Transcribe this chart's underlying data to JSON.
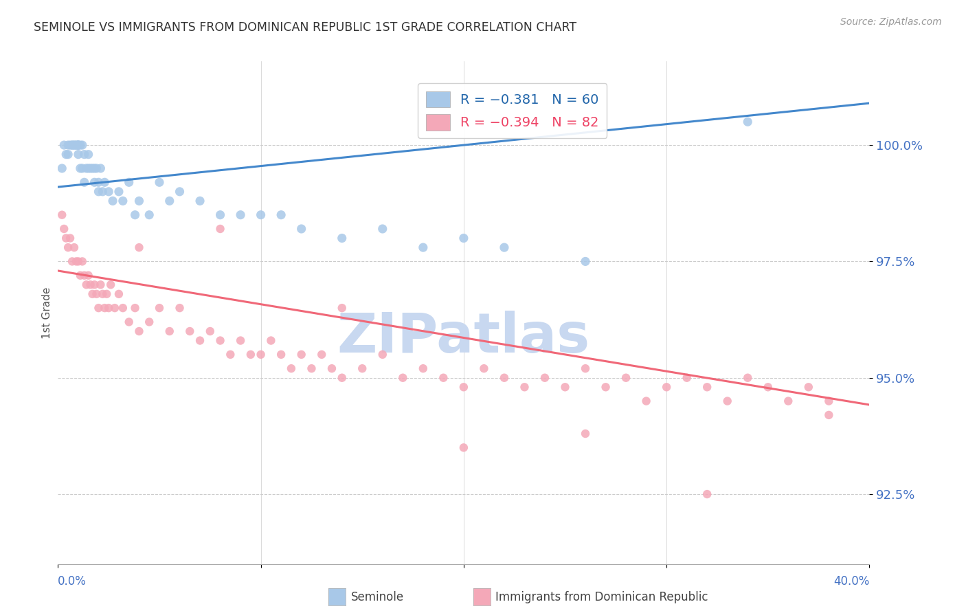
{
  "title": "SEMINOLE VS IMMIGRANTS FROM DOMINICAN REPUBLIC 1ST GRADE CORRELATION CHART",
  "source": "Source: ZipAtlas.com",
  "ylabel": "1st Grade",
  "y_ticks": [
    92.5,
    95.0,
    97.5,
    100.0
  ],
  "y_tick_labels": [
    "92.5%",
    "95.0%",
    "97.5%",
    "100.0%"
  ],
  "x_range": [
    0.0,
    40.0
  ],
  "y_range": [
    91.0,
    101.8
  ],
  "seminole_R": -0.381,
  "seminole_N": 60,
  "immigrants_R": -0.394,
  "immigrants_N": 82,
  "legend_label_blue": "Seminole",
  "legend_label_pink": "Immigrants from Dominican Republic",
  "blue_color": "#A8C8E8",
  "pink_color": "#F4A8B8",
  "blue_line_color": "#4488CC",
  "pink_line_color": "#F06878",
  "title_color": "#333333",
  "axis_label_color": "#4472C4",
  "watermark_color": "#C8D8F0",
  "seminole_x": [
    0.2,
    0.3,
    0.4,
    0.5,
    0.5,
    0.6,
    0.7,
    0.7,
    0.8,
    0.8,
    0.9,
    0.9,
    1.0,
    1.0,
    1.0,
    1.0,
    1.0,
    1.1,
    1.1,
    1.2,
    1.2,
    1.3,
    1.3,
    1.4,
    1.5,
    1.5,
    1.6,
    1.7,
    1.8,
    1.8,
    1.9,
    2.0,
    2.0,
    2.1,
    2.2,
    2.3,
    2.5,
    2.7,
    3.0,
    3.2,
    3.5,
    3.8,
    4.0,
    4.5,
    5.0,
    5.5,
    6.0,
    7.0,
    8.0,
    9.0,
    10.0,
    11.0,
    12.0,
    14.0,
    16.0,
    18.0,
    20.0,
    22.0,
    26.0,
    34.0
  ],
  "seminole_y": [
    99.5,
    100.0,
    99.8,
    100.0,
    99.8,
    100.0,
    100.0,
    100.0,
    100.0,
    100.0,
    100.0,
    100.0,
    100.0,
    100.0,
    100.0,
    100.0,
    99.8,
    100.0,
    99.5,
    100.0,
    99.5,
    99.8,
    99.2,
    99.5,
    99.5,
    99.8,
    99.5,
    99.5,
    99.5,
    99.2,
    99.5,
    99.2,
    99.0,
    99.5,
    99.0,
    99.2,
    99.0,
    98.8,
    99.0,
    98.8,
    99.2,
    98.5,
    98.8,
    98.5,
    99.2,
    98.8,
    99.0,
    98.8,
    98.5,
    98.5,
    98.5,
    98.5,
    98.2,
    98.0,
    98.2,
    97.8,
    98.0,
    97.8,
    97.5,
    100.5
  ],
  "immigrants_x": [
    0.2,
    0.3,
    0.4,
    0.5,
    0.6,
    0.7,
    0.8,
    0.9,
    1.0,
    1.1,
    1.2,
    1.3,
    1.4,
    1.5,
    1.6,
    1.7,
    1.8,
    1.9,
    2.0,
    2.1,
    2.2,
    2.3,
    2.4,
    2.5,
    2.6,
    2.8,
    3.0,
    3.2,
    3.5,
    3.8,
    4.0,
    4.5,
    5.0,
    5.5,
    6.0,
    6.5,
    7.0,
    7.5,
    8.0,
    8.5,
    9.0,
    9.5,
    10.0,
    10.5,
    11.0,
    11.5,
    12.0,
    12.5,
    13.0,
    13.5,
    14.0,
    15.0,
    16.0,
    17.0,
    18.0,
    19.0,
    20.0,
    21.0,
    22.0,
    23.0,
    24.0,
    25.0,
    26.0,
    27.0,
    28.0,
    29.0,
    30.0,
    31.0,
    32.0,
    33.0,
    34.0,
    35.0,
    36.0,
    37.0,
    38.0,
    4.0,
    8.0,
    14.0,
    20.0,
    26.0,
    32.0,
    38.0
  ],
  "immigrants_y": [
    98.5,
    98.2,
    98.0,
    97.8,
    98.0,
    97.5,
    97.8,
    97.5,
    97.5,
    97.2,
    97.5,
    97.2,
    97.0,
    97.2,
    97.0,
    96.8,
    97.0,
    96.8,
    96.5,
    97.0,
    96.8,
    96.5,
    96.8,
    96.5,
    97.0,
    96.5,
    96.8,
    96.5,
    96.2,
    96.5,
    96.0,
    96.2,
    96.5,
    96.0,
    96.5,
    96.0,
    95.8,
    96.0,
    95.8,
    95.5,
    95.8,
    95.5,
    95.5,
    95.8,
    95.5,
    95.2,
    95.5,
    95.2,
    95.5,
    95.2,
    95.0,
    95.2,
    95.5,
    95.0,
    95.2,
    95.0,
    94.8,
    95.2,
    95.0,
    94.8,
    95.0,
    94.8,
    95.2,
    94.8,
    95.0,
    94.5,
    94.8,
    95.0,
    94.8,
    94.5,
    95.0,
    94.8,
    94.5,
    94.8,
    94.5,
    97.8,
    98.2,
    96.5,
    93.5,
    93.8,
    92.5,
    94.2
  ]
}
